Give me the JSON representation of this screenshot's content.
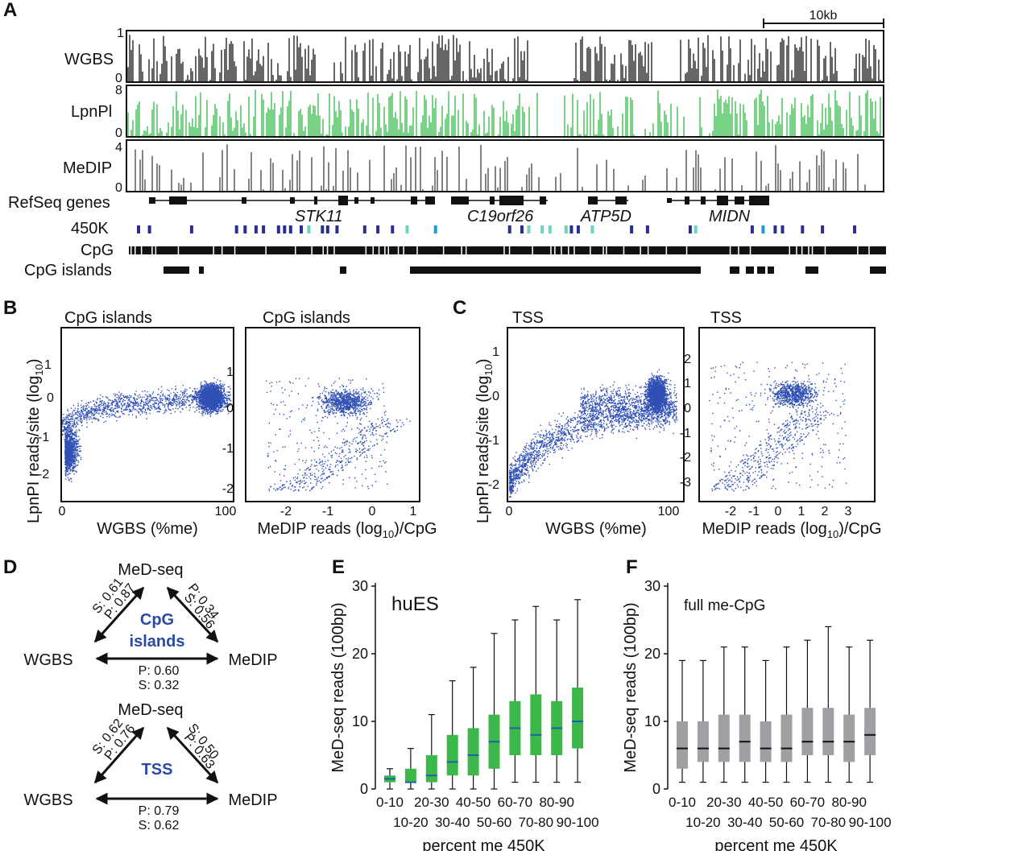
{
  "panels": {
    "A": {
      "letter": "A",
      "scale_bar_label": "10kb",
      "tracks": [
        {
          "name": "WGBS",
          "ymax": "1",
          "ymin": "0",
          "color": "#000000"
        },
        {
          "name": "LpnPl",
          "ymax": "8",
          "ymin": "0",
          "color": "#22b33a"
        },
        {
          "name": "MeDIP",
          "ymax": "4",
          "ymin": "0",
          "color": "#666666"
        }
      ],
      "refseq_label": "RefSeq genes",
      "genes": [
        "STK11",
        "C19orf26",
        "ATP5D",
        "MIDN"
      ],
      "row_labels": {
        "k450": "450K",
        "cpg": "CpG",
        "cpg_islands": "CpG islands"
      }
    },
    "B": {
      "letter": "B",
      "ylabel": "LpnPI reads/site (log",
      "ylabel_sub": "10",
      "ylabel_end": ")",
      "left": {
        "title": "CpG islands",
        "xlabel": "WGBS (%me)",
        "xticks": [
          "0",
          "100"
        ],
        "yticks": [
          "1",
          "0",
          "-1",
          "-2"
        ]
      },
      "right": {
        "title": "CpG islands",
        "xlabel": "MeDIP reads (log",
        "xlabel_sub": "10",
        "xlabel_end": ")/CpG",
        "xticks": [
          "-2",
          "-1",
          "0",
          "1"
        ],
        "yticks": [
          "1",
          "0",
          "-1",
          "-2"
        ]
      }
    },
    "C": {
      "letter": "C",
      "ylabel": "LpnPI reads/site (log",
      "ylabel_sub": "10",
      "ylabel_end": ")",
      "left": {
        "title": "TSS",
        "xlabel": "WGBS (%me)",
        "xticks": [
          "0",
          "100"
        ],
        "yticks": [
          "1",
          "0",
          "-1",
          "-2"
        ]
      },
      "right": {
        "title": "TSS",
        "xlabel": "MeDIP reads (log",
        "xlabel_sub": "10",
        "xlabel_end": ")/CpG",
        "xticks": [
          "-2",
          "-1",
          "0",
          "1",
          "2",
          "3"
        ],
        "yticks": [
          "2",
          "1",
          "0",
          "-1",
          "-2",
          "-3"
        ]
      }
    },
    "D": {
      "letter": "D",
      "triangles": [
        {
          "center": "CpG",
          "center2": "islands",
          "top": "MeD-seq",
          "left": "WGBS",
          "right": "MeDIP",
          "left_edge": [
            "S: 0.61",
            "P: 0.87"
          ],
          "right_edge": [
            "P: 0.34",
            "S: 0.56"
          ],
          "bottom_edge": [
            "P: 0.60",
            "S: 0.32"
          ]
        },
        {
          "center": "TSS",
          "center2": "",
          "top": "MeD-seq",
          "left": "WGBS",
          "right": "MeDIP",
          "left_edge": [
            "S: 0.62",
            "P: 0.76"
          ],
          "right_edge": [
            "S: 0.50",
            "P: 0.63"
          ],
          "bottom_edge": [
            "P: 0.79",
            "S: 0.62"
          ]
        }
      ],
      "accent": "#2a4aa8"
    },
    "E": {
      "letter": "E",
      "inset": "huES"
    },
    "F": {
      "letter": "F",
      "inset": "full me-CpG"
    }
  },
  "chart_data": [
    {
      "type": "box",
      "panel": "E",
      "title": "huES",
      "xlabel": "percent me 450K",
      "ylabel": "MeD-seq reads (100bp)",
      "ylim": [
        0,
        30
      ],
      "yticks": [
        0,
        10,
        20,
        30
      ],
      "color": "#3cb84a",
      "categories": [
        "0-10",
        "10-20",
        "20-30",
        "30-40",
        "40-50",
        "50-60",
        "60-70",
        "70-80",
        "80-90",
        "90-100"
      ],
      "boxes": [
        {
          "min": 0,
          "q1": 1,
          "median": 1.5,
          "q3": 2,
          "max": 3
        },
        {
          "min": 0,
          "q1": 1,
          "median": 1,
          "q3": 3,
          "max": 6
        },
        {
          "min": 0,
          "q1": 1,
          "median": 2,
          "q3": 5,
          "max": 11
        },
        {
          "min": 0,
          "q1": 2,
          "median": 4,
          "q3": 8,
          "max": 16
        },
        {
          "min": 0,
          "q1": 2,
          "median": 5,
          "q3": 9,
          "max": 18
        },
        {
          "min": 0,
          "q1": 3,
          "median": 7,
          "q3": 11,
          "max": 23
        },
        {
          "min": 1,
          "q1": 5,
          "median": 9,
          "q3": 13,
          "max": 25
        },
        {
          "min": 1,
          "q1": 5,
          "median": 8,
          "q3": 14,
          "max": 27
        },
        {
          "min": 1,
          "q1": 5,
          "median": 9,
          "q3": 13,
          "max": 25
        },
        {
          "min": 1,
          "q1": 6,
          "median": 10,
          "q3": 15,
          "max": 28
        }
      ]
    },
    {
      "type": "box",
      "panel": "F",
      "title": "full me-CpG",
      "xlabel": "percent me 450K",
      "ylabel": "MeD-seq reads (100bp)",
      "ylim": [
        0,
        30
      ],
      "yticks": [
        0,
        10,
        20,
        30
      ],
      "color": "#a0a0a4",
      "categories": [
        "0-10",
        "10-20",
        "20-30",
        "30-40",
        "40-50",
        "50-60",
        "60-70",
        "70-80",
        "80-90",
        "90-100"
      ],
      "boxes": [
        {
          "min": 1,
          "q1": 3,
          "median": 6,
          "q3": 10,
          "max": 19
        },
        {
          "min": 1,
          "q1": 4,
          "median": 6,
          "q3": 10,
          "max": 19
        },
        {
          "min": 1,
          "q1": 4,
          "median": 6,
          "q3": 11,
          "max": 21
        },
        {
          "min": 1,
          "q1": 4,
          "median": 7,
          "q3": 11,
          "max": 21
        },
        {
          "min": 1,
          "q1": 4,
          "median": 6,
          "q3": 10,
          "max": 19
        },
        {
          "min": 1,
          "q1": 4,
          "median": 6,
          "q3": 11,
          "max": 21
        },
        {
          "min": 1,
          "q1": 5,
          "median": 7,
          "q3": 12,
          "max": 22
        },
        {
          "min": 1,
          "q1": 5,
          "median": 7,
          "q3": 12,
          "max": 24
        },
        {
          "min": 1,
          "q1": 4,
          "median": 7,
          "q3": 11,
          "max": 21
        },
        {
          "min": 1,
          "q1": 5,
          "median": 8,
          "q3": 12,
          "max": 22
        }
      ]
    }
  ]
}
